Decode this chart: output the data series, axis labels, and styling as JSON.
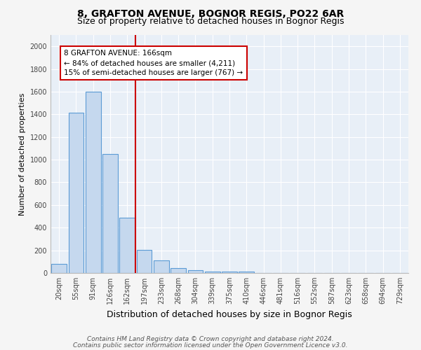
{
  "title": "8, GRAFTON AVENUE, BOGNOR REGIS, PO22 6AR",
  "subtitle": "Size of property relative to detached houses in Bognor Regis",
  "xlabel": "Distribution of detached houses by size in Bognor Regis",
  "ylabel": "Number of detached properties",
  "categories": [
    "20sqm",
    "55sqm",
    "91sqm",
    "126sqm",
    "162sqm",
    "197sqm",
    "233sqm",
    "268sqm",
    "304sqm",
    "339sqm",
    "375sqm",
    "410sqm",
    "446sqm",
    "481sqm",
    "516sqm",
    "552sqm",
    "587sqm",
    "623sqm",
    "658sqm",
    "694sqm",
    "729sqm"
  ],
  "bar_values": [
    80,
    1415,
    1600,
    1050,
    490,
    205,
    110,
    45,
    25,
    15,
    10,
    10,
    0,
    0,
    0,
    0,
    0,
    0,
    0,
    0,
    0
  ],
  "bar_color": "#c5d8ee",
  "bar_edge_color": "#5b9bd5",
  "property_line_color": "#cc0000",
  "annotation_text": "8 GRAFTON AVENUE: 166sqm\n← 84% of detached houses are smaller (4,211)\n15% of semi-detached houses are larger (767) →",
  "annotation_box_edge": "#cc0000",
  "ylim": [
    0,
    2100
  ],
  "yticks": [
    0,
    200,
    400,
    600,
    800,
    1000,
    1200,
    1400,
    1600,
    1800,
    2000
  ],
  "footnote1": "Contains HM Land Registry data © Crown copyright and database right 2024.",
  "footnote2": "Contains public sector information licensed under the Open Government Licence v3.0.",
  "fig_facecolor": "#f5f5f5",
  "plot_facecolor": "#e8eff7",
  "title_fontsize": 10,
  "subtitle_fontsize": 9,
  "xlabel_fontsize": 9,
  "ylabel_fontsize": 8,
  "tick_fontsize": 7,
  "footnote_fontsize": 6.5,
  "annotation_fontsize": 7.5
}
